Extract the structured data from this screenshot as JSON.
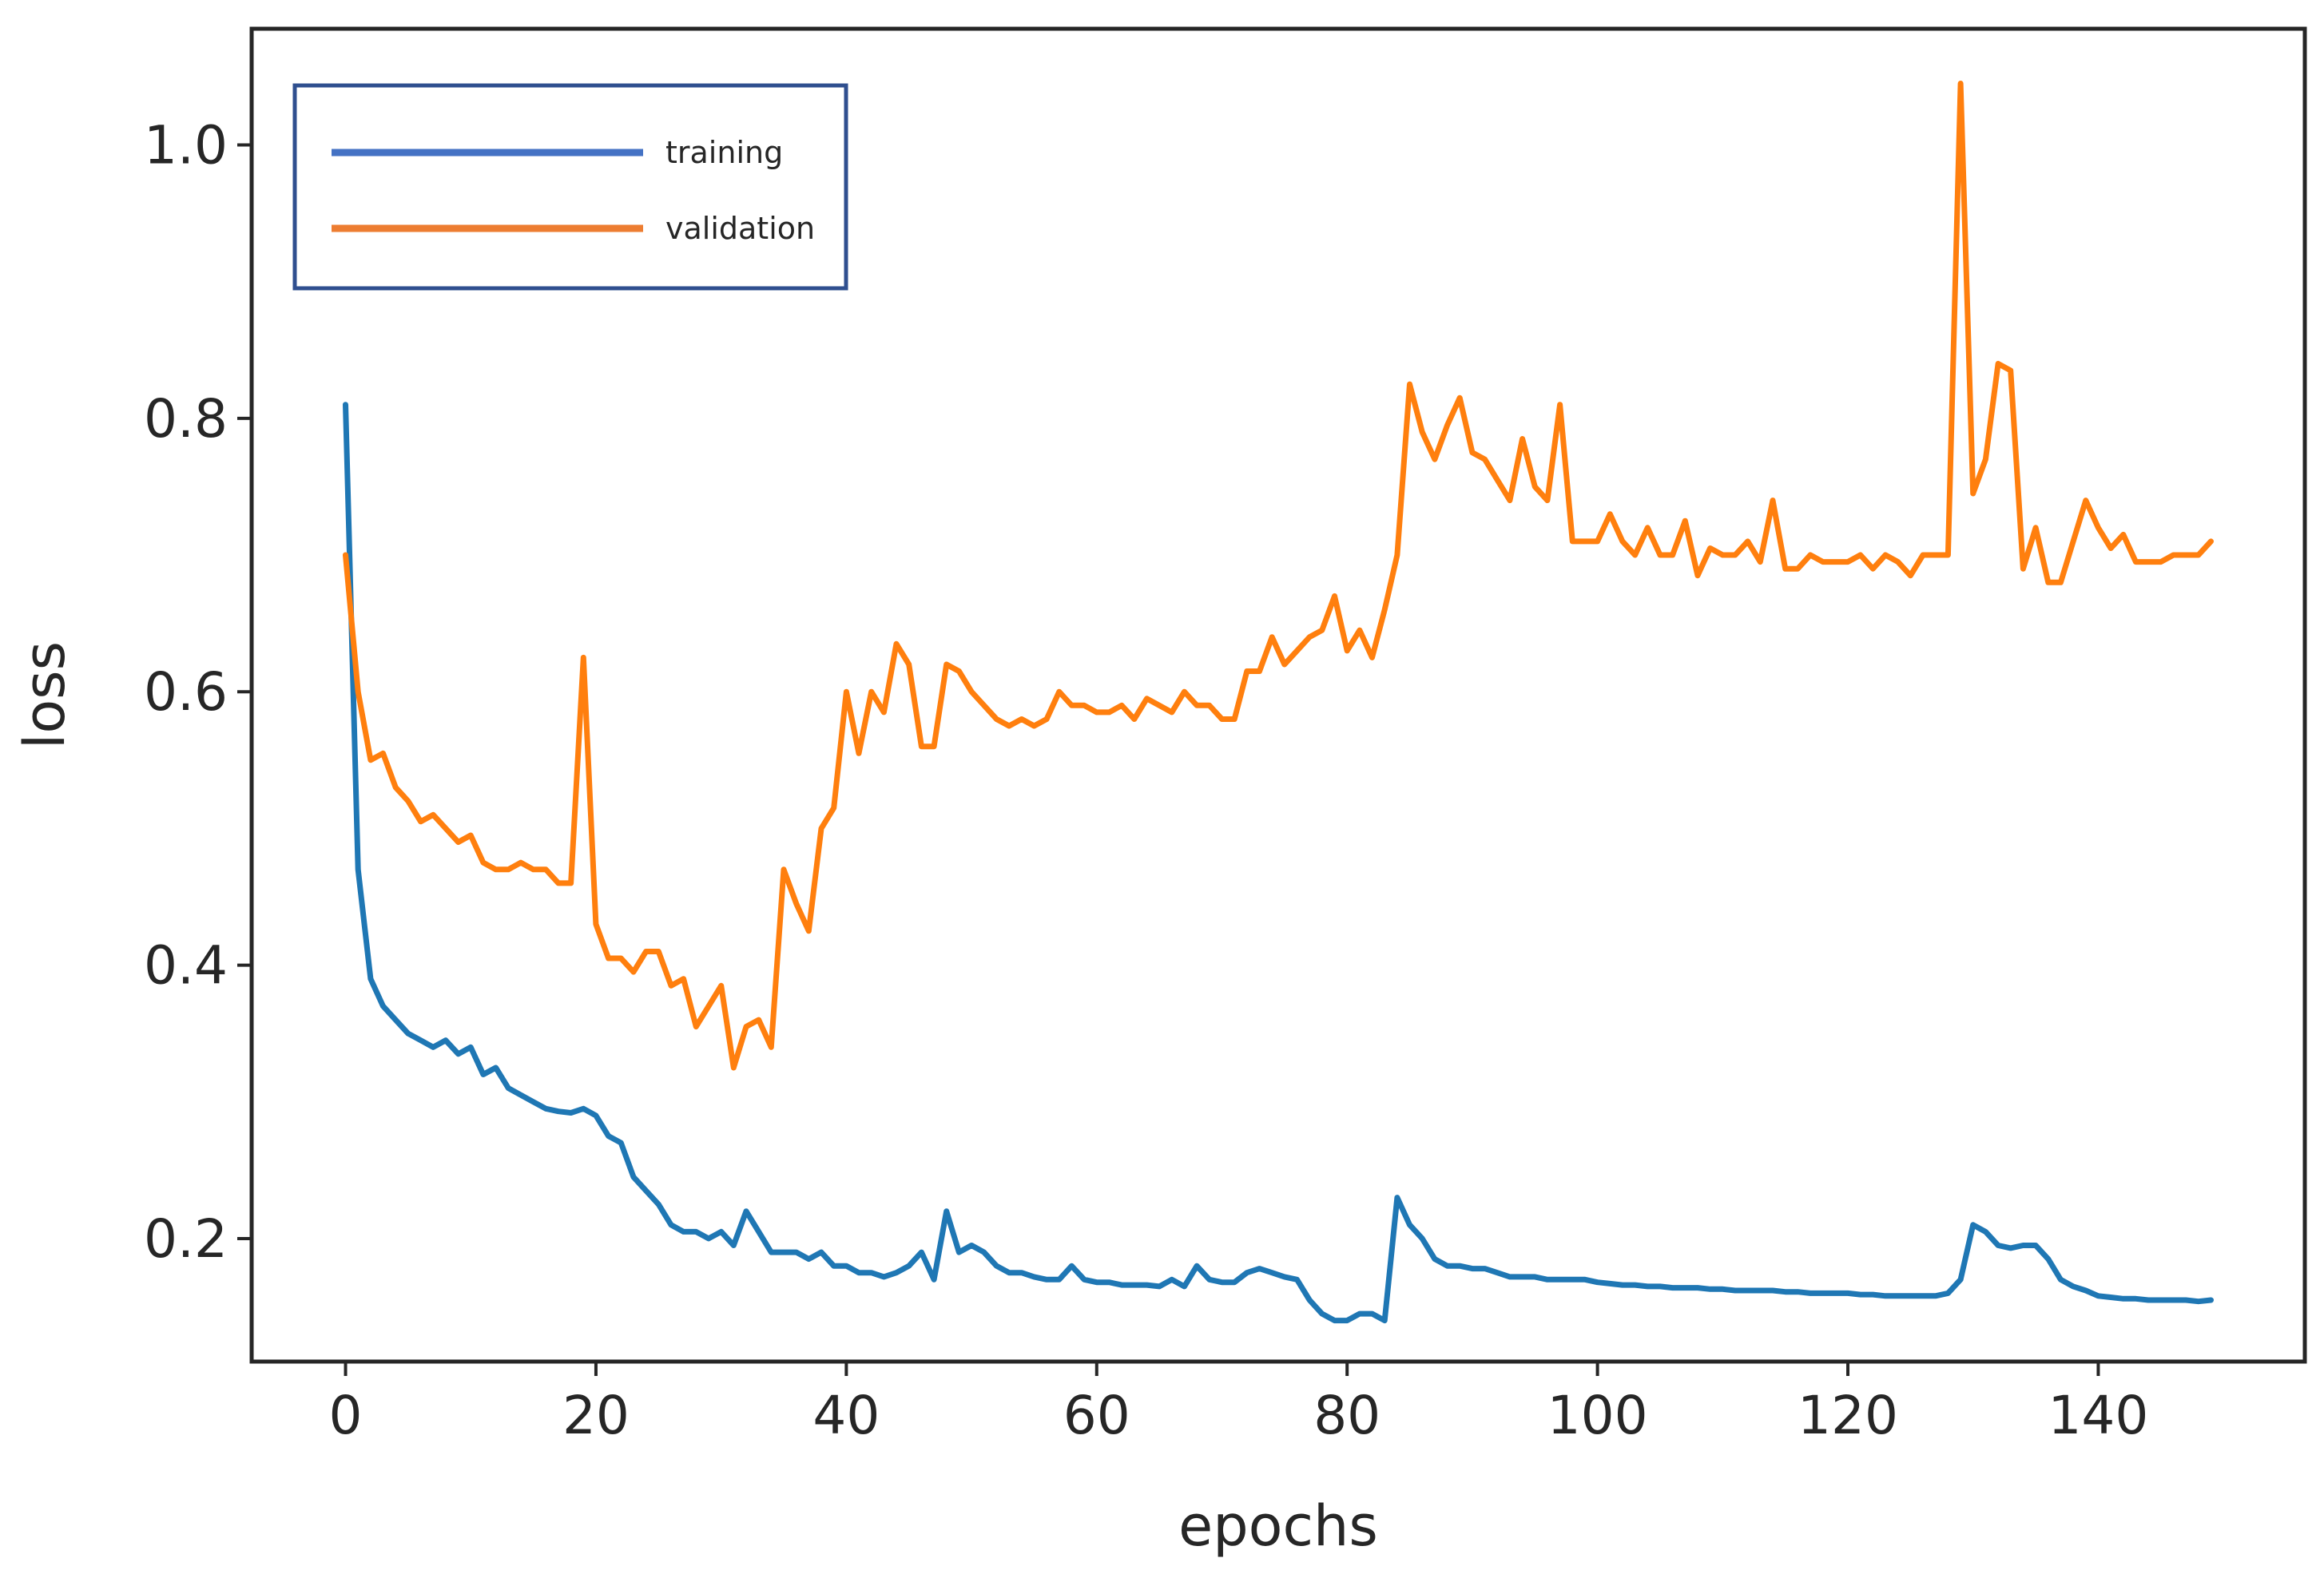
{
  "chart_data": {
    "type": "line",
    "xlabel": "epochs",
    "ylabel": "loss",
    "xlim": [
      -7.5,
      156.5
    ],
    "ylim": [
      0.11,
      1.085
    ],
    "xticks": [
      0,
      20,
      40,
      60,
      80,
      100,
      120,
      140
    ],
    "yticks": [
      0.2,
      0.4,
      0.6,
      0.8,
      1.0
    ],
    "grid": false,
    "legend_position": "top-left",
    "series": [
      {
        "name": "training",
        "color": "#1f77b4",
        "legend_color": "#4472c4",
        "x": [
          0,
          1,
          2,
          3,
          4,
          5,
          6,
          7,
          8,
          9,
          10,
          11,
          12,
          13,
          14,
          15,
          16,
          17,
          18,
          19,
          20,
          21,
          22,
          23,
          24,
          25,
          26,
          27,
          28,
          29,
          30,
          31,
          32,
          33,
          34,
          35,
          36,
          37,
          38,
          39,
          40,
          41,
          42,
          43,
          44,
          45,
          46,
          47,
          48,
          49,
          50,
          51,
          52,
          53,
          54,
          55,
          56,
          57,
          58,
          59,
          60,
          61,
          62,
          63,
          64,
          65,
          66,
          67,
          68,
          69,
          70,
          71,
          72,
          73,
          74,
          75,
          76,
          77,
          78,
          79,
          80,
          81,
          82,
          83,
          84,
          85,
          86,
          87,
          88,
          89,
          90,
          91,
          92,
          93,
          94,
          95,
          96,
          97,
          98,
          99,
          100,
          101,
          102,
          103,
          104,
          105,
          106,
          107,
          108,
          109,
          110,
          111,
          112,
          113,
          114,
          115,
          116,
          117,
          118,
          119,
          120,
          121,
          122,
          123,
          124,
          125,
          126,
          127,
          128,
          129,
          130,
          131,
          132,
          133,
          134,
          135,
          136,
          137,
          138,
          139,
          140,
          141,
          142,
          143,
          144,
          145,
          146,
          147,
          148,
          149
        ],
        "values": [
          0.81,
          0.47,
          0.39,
          0.37,
          0.36,
          0.35,
          0.345,
          0.34,
          0.345,
          0.335,
          0.34,
          0.32,
          0.325,
          0.31,
          0.305,
          0.3,
          0.295,
          0.293,
          0.292,
          0.295,
          0.29,
          0.275,
          0.27,
          0.245,
          0.235,
          0.225,
          0.21,
          0.205,
          0.205,
          0.2,
          0.205,
          0.195,
          0.22,
          0.205,
          0.19,
          0.19,
          0.19,
          0.185,
          0.19,
          0.18,
          0.18,
          0.175,
          0.175,
          0.172,
          0.175,
          0.18,
          0.19,
          0.17,
          0.22,
          0.19,
          0.195,
          0.19,
          0.18,
          0.175,
          0.175,
          0.172,
          0.17,
          0.17,
          0.18,
          0.17,
          0.168,
          0.168,
          0.166,
          0.166,
          0.166,
          0.165,
          0.17,
          0.165,
          0.18,
          0.17,
          0.168,
          0.168,
          0.175,
          0.178,
          0.175,
          0.172,
          0.17,
          0.155,
          0.145,
          0.14,
          0.14,
          0.145,
          0.145,
          0.14,
          0.23,
          0.21,
          0.2,
          0.185,
          0.18,
          0.18,
          0.178,
          0.178,
          0.175,
          0.172,
          0.172,
          0.172,
          0.17,
          0.17,
          0.17,
          0.17,
          0.168,
          0.167,
          0.166,
          0.166,
          0.165,
          0.165,
          0.164,
          0.164,
          0.164,
          0.163,
          0.163,
          0.162,
          0.162,
          0.162,
          0.162,
          0.161,
          0.161,
          0.16,
          0.16,
          0.16,
          0.16,
          0.159,
          0.159,
          0.158,
          0.158,
          0.158,
          0.158,
          0.158,
          0.16,
          0.17,
          0.21,
          0.205,
          0.195,
          0.193,
          0.195,
          0.195,
          0.185,
          0.17,
          0.165,
          0.162,
          0.158,
          0.157,
          0.156,
          0.156,
          0.155,
          0.155,
          0.155,
          0.155,
          0.154,
          0.155
        ]
      },
      {
        "name": "validation",
        "color": "#ff7f0e",
        "legend_color": "#ed7d31",
        "x": [
          0,
          1,
          2,
          3,
          4,
          5,
          6,
          7,
          8,
          9,
          10,
          11,
          12,
          13,
          14,
          15,
          16,
          17,
          18,
          19,
          20,
          21,
          22,
          23,
          24,
          25,
          26,
          27,
          28,
          29,
          30,
          31,
          32,
          33,
          34,
          35,
          36,
          37,
          38,
          39,
          40,
          41,
          42,
          43,
          44,
          45,
          46,
          47,
          48,
          49,
          50,
          51,
          52,
          53,
          54,
          55,
          56,
          57,
          58,
          59,
          60,
          61,
          62,
          63,
          64,
          65,
          66,
          67,
          68,
          69,
          70,
          71,
          72,
          73,
          74,
          75,
          76,
          77,
          78,
          79,
          80,
          81,
          82,
          83,
          84,
          85,
          86,
          87,
          88,
          89,
          90,
          91,
          92,
          93,
          94,
          95,
          96,
          97,
          98,
          99,
          100,
          101,
          102,
          103,
          104,
          105,
          106,
          107,
          108,
          109,
          110,
          111,
          112,
          113,
          114,
          115,
          116,
          117,
          118,
          119,
          120,
          121,
          122,
          123,
          124,
          125,
          126,
          127,
          128,
          129,
          130,
          131,
          132,
          133,
          134,
          135,
          136,
          137,
          138,
          139,
          140,
          141,
          142,
          143,
          144,
          145,
          146,
          147,
          148,
          149
        ],
        "values": [
          0.7,
          0.6,
          0.55,
          0.555,
          0.53,
          0.52,
          0.505,
          0.51,
          0.5,
          0.49,
          0.495,
          0.475,
          0.47,
          0.47,
          0.475,
          0.47,
          0.47,
          0.46,
          0.46,
          0.625,
          0.43,
          0.405,
          0.405,
          0.395,
          0.41,
          0.41,
          0.385,
          0.39,
          0.355,
          0.37,
          0.385,
          0.325,
          0.355,
          0.36,
          0.34,
          0.47,
          0.445,
          0.425,
          0.5,
          0.515,
          0.6,
          0.555,
          0.6,
          0.585,
          0.635,
          0.62,
          0.56,
          0.56,
          0.62,
          0.615,
          0.6,
          0.59,
          0.58,
          0.575,
          0.58,
          0.575,
          0.58,
          0.6,
          0.59,
          0.59,
          0.585,
          0.585,
          0.59,
          0.58,
          0.595,
          0.59,
          0.585,
          0.6,
          0.59,
          0.59,
          0.58,
          0.58,
          0.615,
          0.615,
          0.64,
          0.62,
          0.63,
          0.64,
          0.645,
          0.67,
          0.63,
          0.645,
          0.625,
          0.66,
          0.7,
          0.825,
          0.79,
          0.77,
          0.795,
          0.815,
          0.775,
          0.77,
          0.755,
          0.74,
          0.785,
          0.75,
          0.74,
          0.81,
          0.71,
          0.71,
          0.71,
          0.73,
          0.71,
          0.7,
          0.72,
          0.7,
          0.7,
          0.725,
          0.685,
          0.705,
          0.7,
          0.7,
          0.71,
          0.695,
          0.74,
          0.69,
          0.69,
          0.7,
          0.695,
          0.695,
          0.695,
          0.7,
          0.69,
          0.7,
          0.695,
          0.685,
          0.7,
          0.7,
          0.7,
          1.045,
          0.745,
          0.77,
          0.84,
          0.835,
          0.69,
          0.72,
          0.68,
          0.68,
          0.71,
          0.74,
          0.72,
          0.705,
          0.715,
          0.695,
          0.695,
          0.695,
          0.7,
          0.7,
          0.7,
          0.71
        ]
      }
    ]
  }
}
